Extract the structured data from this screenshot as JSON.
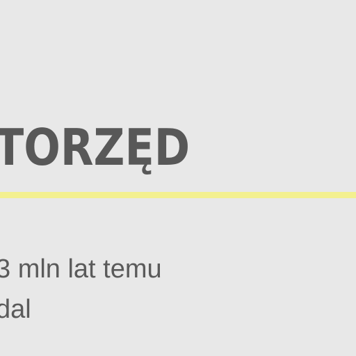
{
  "main": {
    "heading": "TORZĘD",
    "line1": "3 mln lat temu",
    "line2": "dal"
  },
  "colors": {
    "background": "#e8e8e8",
    "heading_text": "#585858",
    "body_text": "#5a5a5a",
    "underline": "#f3f08f"
  }
}
